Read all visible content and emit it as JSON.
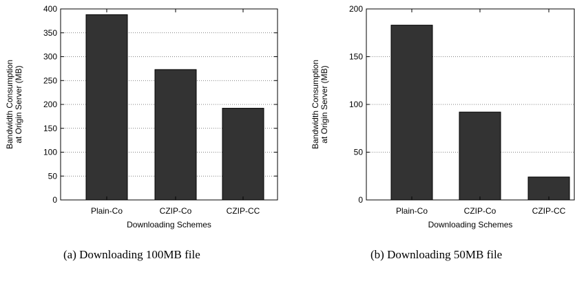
{
  "chart_data": [
    {
      "type": "bar",
      "categories": [
        "Plain-Co",
        "CZIP-Co",
        "CZIP-CC"
      ],
      "values": [
        388,
        273,
        192
      ],
      "xlabel": "Downloading Schemes",
      "ylabel_lines": [
        "Bandwidth Consumption",
        "at Origin Server (MB)"
      ],
      "ylim": [
        0,
        400
      ],
      "yticks": [
        0,
        50,
        100,
        150,
        200,
        250,
        300,
        350,
        400
      ],
      "grid": "horizontal dotted",
      "bar_color": "#333333",
      "caption": "(a) Downloading 100MB file"
    },
    {
      "type": "bar",
      "categories": [
        "Plain-Co",
        "CZIP-Co",
        "CZIP-CC"
      ],
      "values": [
        183,
        92,
        24
      ],
      "xlabel": "Downloading Schemes",
      "ylabel_lines": [
        "Bandwidth Consumption",
        "at Origin Server (MB)"
      ],
      "ylim": [
        0,
        200
      ],
      "yticks": [
        0,
        50,
        100,
        150,
        200
      ],
      "grid": "horizontal dotted",
      "bar_color": "#333333",
      "caption": "(b) Downloading 50MB file"
    }
  ]
}
